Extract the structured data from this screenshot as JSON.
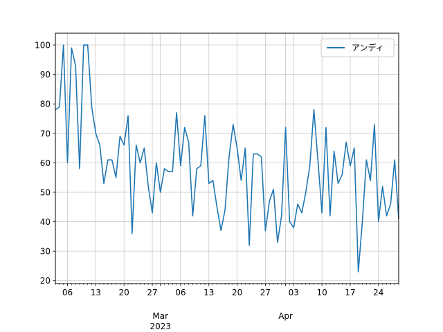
{
  "chart_data": {
    "type": "line",
    "title": "",
    "xlabel": "",
    "ylabel": "",
    "x_start": "2023-02-03",
    "x_end": "2023-04-29",
    "ylim": [
      19,
      104
    ],
    "grid": true,
    "legend_position": "upper right",
    "line_color": "#1f77b4",
    "y_ticks": [
      20,
      30,
      40,
      50,
      60,
      70,
      80,
      90,
      100
    ],
    "x_ticks": [
      {
        "date": "2023-02-06",
        "label": "06"
      },
      {
        "date": "2023-02-13",
        "label": "13"
      },
      {
        "date": "2023-02-20",
        "label": "20"
      },
      {
        "date": "2023-02-27",
        "label": "27"
      },
      {
        "date": "2023-03-01",
        "label": "Mar\n2023",
        "major": true
      },
      {
        "date": "2023-03-06",
        "label": "06"
      },
      {
        "date": "2023-03-13",
        "label": "13"
      },
      {
        "date": "2023-03-20",
        "label": "20"
      },
      {
        "date": "2023-03-27",
        "label": "27"
      },
      {
        "date": "2023-04-01",
        "label": "Apr",
        "major": true
      },
      {
        "date": "2023-04-03",
        "label": "03"
      },
      {
        "date": "2023-04-10",
        "label": "10"
      },
      {
        "date": "2023-04-17",
        "label": "17"
      },
      {
        "date": "2023-04-24",
        "label": "24"
      }
    ],
    "series": [
      {
        "name": "アンディ",
        "x": [
          "2023-02-03",
          "2023-02-04",
          "2023-02-05",
          "2023-02-06",
          "2023-02-07",
          "2023-02-08",
          "2023-02-09",
          "2023-02-10",
          "2023-02-11",
          "2023-02-12",
          "2023-02-13",
          "2023-02-14",
          "2023-02-15",
          "2023-02-16",
          "2023-02-17",
          "2023-02-18",
          "2023-02-19",
          "2023-02-20",
          "2023-02-21",
          "2023-02-22",
          "2023-02-23",
          "2023-02-24",
          "2023-02-25",
          "2023-02-26",
          "2023-02-27",
          "2023-02-28",
          "2023-03-01",
          "2023-03-02",
          "2023-03-03",
          "2023-03-04",
          "2023-03-05",
          "2023-03-06",
          "2023-03-07",
          "2023-03-08",
          "2023-03-09",
          "2023-03-10",
          "2023-03-11",
          "2023-03-12",
          "2023-03-13",
          "2023-03-14",
          "2023-03-15",
          "2023-03-16",
          "2023-03-17",
          "2023-03-18",
          "2023-03-19",
          "2023-03-20",
          "2023-03-21",
          "2023-03-22",
          "2023-03-23",
          "2023-03-24",
          "2023-03-25",
          "2023-03-26",
          "2023-03-27",
          "2023-03-28",
          "2023-03-29",
          "2023-03-30",
          "2023-03-31",
          "2023-04-01",
          "2023-04-02",
          "2023-04-03",
          "2023-04-04",
          "2023-04-05",
          "2023-04-06",
          "2023-04-07",
          "2023-04-08",
          "2023-04-09",
          "2023-04-10",
          "2023-04-11",
          "2023-04-12",
          "2023-04-13",
          "2023-04-14",
          "2023-04-15",
          "2023-04-16",
          "2023-04-17",
          "2023-04-18",
          "2023-04-19",
          "2023-04-20",
          "2023-04-21",
          "2023-04-22",
          "2023-04-23",
          "2023-04-24",
          "2023-04-25",
          "2023-04-26",
          "2023-04-27",
          "2023-04-28",
          "2023-04-29"
        ],
        "values": [
          78,
          79,
          100,
          60,
          99,
          93,
          58,
          100,
          100,
          79,
          70,
          66,
          53,
          61,
          61,
          55,
          69,
          66,
          76,
          36,
          66,
          60,
          65,
          52,
          43,
          60,
          50,
          58,
          57,
          57,
          77,
          59,
          72,
          67,
          42,
          58,
          59,
          76,
          53,
          54,
          45,
          37,
          44,
          62,
          73,
          65,
          54,
          65,
          32,
          63,
          63,
          62,
          37,
          47,
          51,
          33,
          42,
          72,
          40,
          38,
          46,
          43,
          50,
          59,
          78,
          61,
          43,
          72,
          42,
          64,
          53,
          56,
          67,
          59,
          65,
          23,
          40,
          61,
          54,
          73,
          40,
          52,
          42,
          46,
          61,
          41
        ]
      }
    ]
  }
}
